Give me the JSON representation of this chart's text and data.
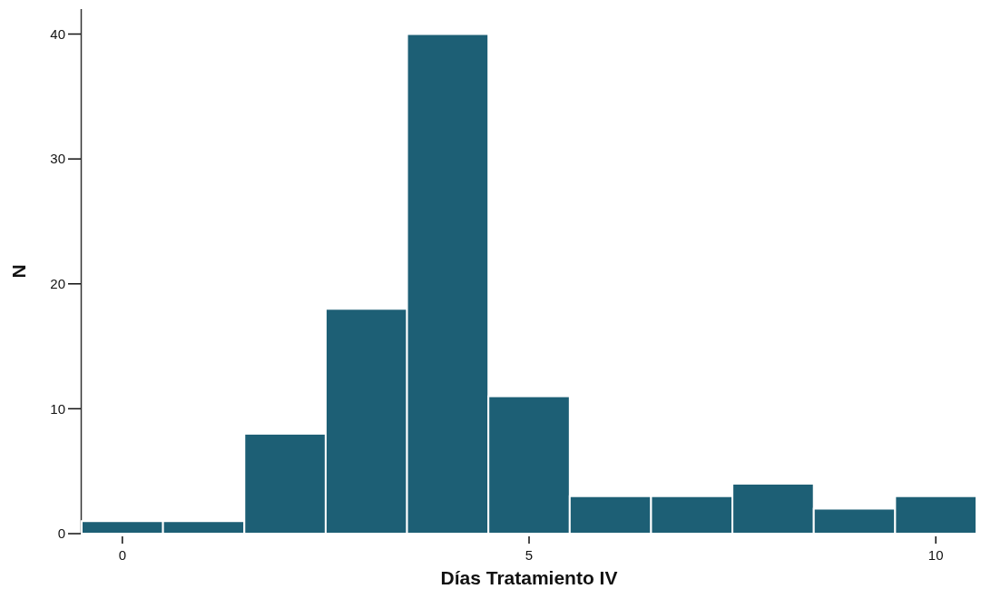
{
  "chart_data": {
    "type": "histogram",
    "xlabel": "Días Tratamiento IV",
    "ylabel": "N",
    "bins": [
      -0.5,
      0.5,
      1.5,
      2.5,
      3.5,
      4.5,
      5.5,
      6.5,
      7.5,
      8.5,
      9.5,
      10.5
    ],
    "values": [
      1,
      1,
      8,
      18,
      40,
      11,
      3,
      3,
      4,
      2,
      3
    ],
    "color": "#1d5f75",
    "xlim": [
      -0.5,
      10.5
    ],
    "xticks": [
      0,
      5,
      10
    ],
    "ylim": [
      0,
      42
    ],
    "yticks": [
      0,
      10,
      20,
      30,
      40
    ]
  }
}
